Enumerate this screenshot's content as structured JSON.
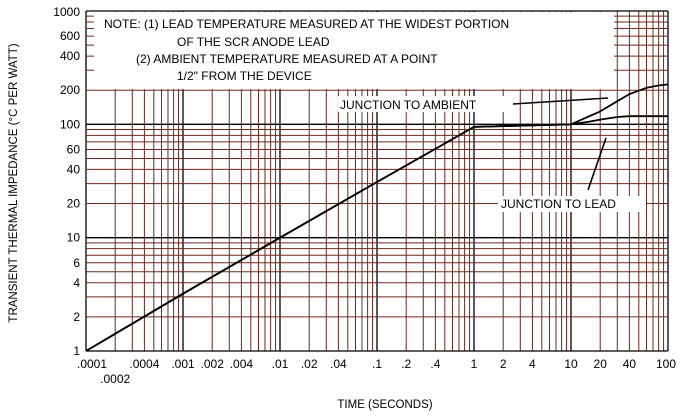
{
  "chart_data": {
    "type": "line",
    "x_scale": "log",
    "y_scale": "log",
    "xlim": [
      0.0001,
      100
    ],
    "ylim": [
      1,
      1000
    ],
    "grid": true,
    "xlabel": "TIME (SECONDS)",
    "ylabel": "TRANSIENT THERMAL IMPEDANCE (°C PER WATT)",
    "x_ticks": [
      {
        "value": 0.0001,
        "label": ".0001"
      },
      {
        "value": 0.0002,
        "label": ".0002"
      },
      {
        "value": 0.0004,
        "label": ".0004"
      },
      {
        "value": 0.001,
        "label": ".001"
      },
      {
        "value": 0.002,
        "label": ".002"
      },
      {
        "value": 0.004,
        "label": ".004"
      },
      {
        "value": 0.01,
        "label": ".01"
      },
      {
        "value": 0.02,
        "label": ".02"
      },
      {
        "value": 0.04,
        "label": ".04"
      },
      {
        "value": 0.1,
        "label": ".1"
      },
      {
        "value": 0.2,
        "label": ".2"
      },
      {
        "value": 0.4,
        "label": ".4"
      },
      {
        "value": 1,
        "label": "1"
      },
      {
        "value": 2,
        "label": "2"
      },
      {
        "value": 4,
        "label": "4"
      },
      {
        "value": 10,
        "label": "10"
      },
      {
        "value": 20,
        "label": "20"
      },
      {
        "value": 40,
        "label": "40"
      },
      {
        "value": 100,
        "label": "100"
      }
    ],
    "y_ticks": [
      {
        "value": 1,
        "label": "1"
      },
      {
        "value": 2,
        "label": "2"
      },
      {
        "value": 4,
        "label": "4"
      },
      {
        "value": 6,
        "label": "6"
      },
      {
        "value": 10,
        "label": "10"
      },
      {
        "value": 20,
        "label": "20"
      },
      {
        "value": 40,
        "label": "40"
      },
      {
        "value": 60,
        "label": "60"
      },
      {
        "value": 100,
        "label": "100"
      },
      {
        "value": 200,
        "label": "200"
      },
      {
        "value": 400,
        "label": "400"
      },
      {
        "value": 600,
        "label": "600"
      },
      {
        "value": 1000,
        "label": "1000"
      }
    ],
    "notes": [
      "NOTE: (1)  LEAD TEMPERATURE MEASURED AT THE WIDEST PORTION",
      "OF THE SCR ANODE LEAD",
      "(2)  AMBIENT TEMPERATURE MEASURED AT A POINT",
      "1/2\" FROM THE DEVICE"
    ],
    "series": [
      {
        "name": "JUNCTION TO AMBIENT",
        "x": [
          0.0001,
          0.001,
          0.01,
          0.1,
          1,
          10,
          20,
          30,
          40,
          60,
          80,
          100
        ],
        "y": [
          1,
          3.2,
          10,
          31,
          95,
          100,
          130,
          160,
          185,
          210,
          220,
          225
        ]
      },
      {
        "name": "JUNCTION TO LEAD",
        "x": [
          0.0001,
          0.001,
          0.01,
          0.1,
          1,
          10,
          15,
          20,
          30,
          40,
          60,
          100
        ],
        "y": [
          1,
          3.2,
          10,
          31,
          95,
          100,
          105,
          110,
          116,
          118,
          118,
          118
        ]
      }
    ],
    "callouts": [
      {
        "text": "JUNCTION TO AMBIENT",
        "series": "JUNCTION TO AMBIENT"
      },
      {
        "text": "JUNCTION TO LEAD",
        "series": "JUNCTION TO LEAD"
      }
    ]
  }
}
